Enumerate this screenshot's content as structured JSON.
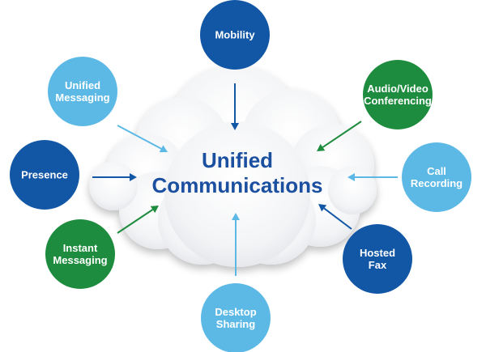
{
  "center": {
    "title_line1": "Unified",
    "title_line2": "Communications",
    "title_color": "#1b4fa0"
  },
  "colors": {
    "dark_blue": "#1257a6",
    "light_blue": "#5cb9e6",
    "green": "#1e8c3e"
  },
  "nodes": [
    {
      "id": "mobility",
      "lines": [
        "Mobility"
      ],
      "color": "dark_blue"
    },
    {
      "id": "audio-video-conferencing",
      "lines": [
        "Audio/Video",
        "Conferencing"
      ],
      "color": "green"
    },
    {
      "id": "call-recording",
      "lines": [
        "Call",
        "Recording"
      ],
      "color": "light_blue"
    },
    {
      "id": "hosted-fax",
      "lines": [
        "Hosted",
        "Fax"
      ],
      "color": "dark_blue"
    },
    {
      "id": "desktop-sharing",
      "lines": [
        "Desktop",
        "Sharing"
      ],
      "color": "light_blue"
    },
    {
      "id": "instant-messaging",
      "lines": [
        "Instant",
        "Messaging"
      ],
      "color": "green"
    },
    {
      "id": "presence",
      "lines": [
        "Presence"
      ],
      "color": "dark_blue"
    },
    {
      "id": "unified-messaging",
      "lines": [
        "Unified",
        "Messaging"
      ],
      "color": "light_blue"
    }
  ]
}
